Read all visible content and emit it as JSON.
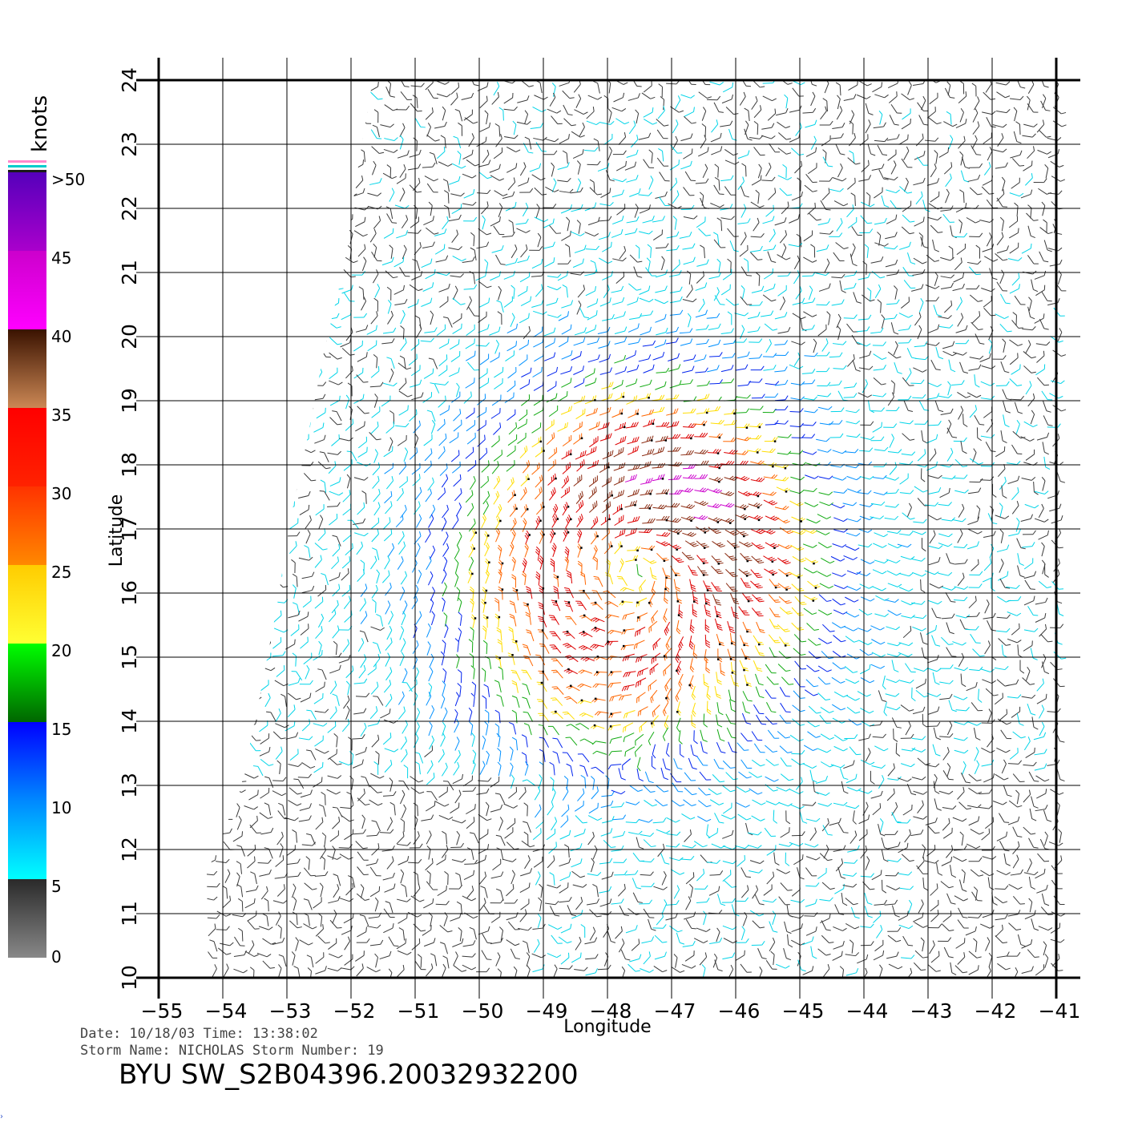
{
  "colorbar": {
    "title": "knots",
    "ticks": [
      "0",
      "5",
      "10",
      "15",
      "20",
      "25",
      "30",
      "35",
      "40",
      "45",
      ">50"
    ],
    "segments": [
      {
        "from": 0,
        "to": 5,
        "colors": [
          "#888888",
          "#2a2a2a"
        ]
      },
      {
        "from": 5,
        "to": 10,
        "colors": [
          "#00ffff",
          "#0088ff"
        ]
      },
      {
        "from": 10,
        "to": 15,
        "colors": [
          "#0088ff",
          "#0000ff"
        ]
      },
      {
        "from": 15,
        "to": 20,
        "colors": [
          "#006600",
          "#00ff00"
        ]
      },
      {
        "from": 20,
        "to": 25,
        "colors": [
          "#ffff33",
          "#ffcc00"
        ]
      },
      {
        "from": 25,
        "to": 30,
        "colors": [
          "#ff8800",
          "#ff3300"
        ]
      },
      {
        "from": 30,
        "to": 35,
        "colors": [
          "#ff2200",
          "#ff0000"
        ]
      },
      {
        "from": 35,
        "to": 40,
        "colors": [
          "#cc8855",
          "#3a1200"
        ]
      },
      {
        "from": 40,
        "to": 45,
        "colors": [
          "#ff00ff",
          "#cc00cc"
        ]
      },
      {
        "from": 45,
        "to": 50,
        "colors": [
          "#aa00cc",
          "#5500bb"
        ]
      }
    ],
    "top_stripes": [
      "#ff88cc",
      "#ffffff",
      "#00cccc",
      "#ffffff",
      "#1a1a1a"
    ]
  },
  "map": {
    "xlabel": "Longitude",
    "ylabel": "Latitude",
    "lon_range": [
      -55,
      -41
    ],
    "lat_range": [
      10,
      24
    ],
    "lon_ticks": [
      "−55",
      "−54",
      "−53",
      "−52",
      "−51",
      "−50",
      "−49",
      "−48",
      "−47",
      "−46",
      "−45",
      "−44",
      "−43",
      "−42",
      "−41"
    ],
    "lat_ticks": [
      "10",
      "11",
      "12",
      "13",
      "14",
      "15",
      "16",
      "17",
      "18",
      "19",
      "20",
      "21",
      "22",
      "23",
      "24"
    ],
    "storm_center": {
      "lon": -47.6,
      "lat": 16.3
    }
  },
  "footer": {
    "line1": "Date: 10/18/03   Time: 13:38:02",
    "line2": "Storm Name: NICHOLAS   Storm Number: 19",
    "product": "BYU SW_S2B04396.20032932200"
  }
}
